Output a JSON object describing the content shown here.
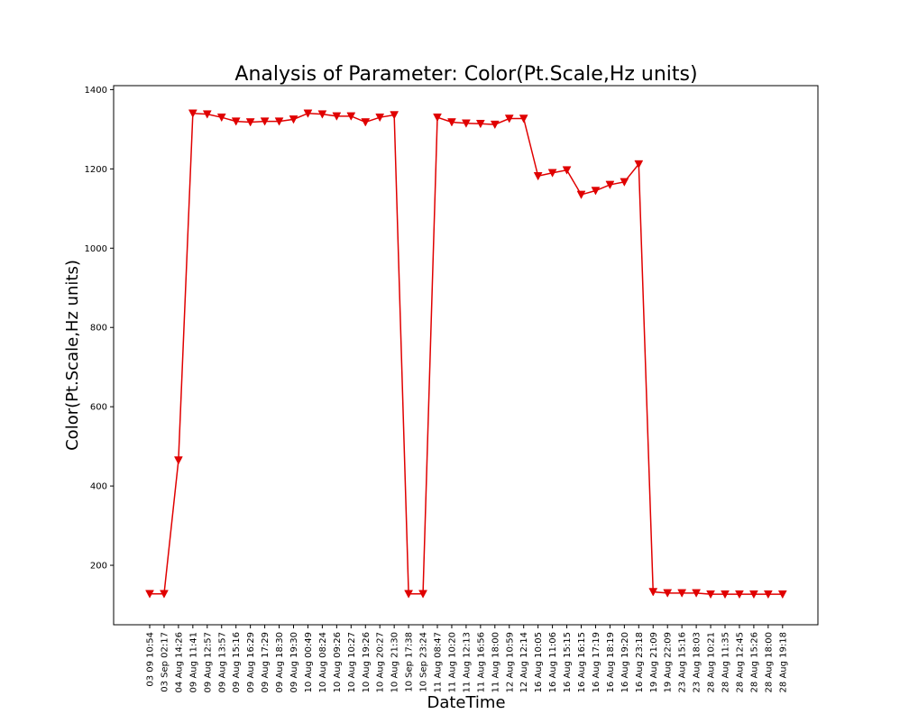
{
  "chart_data": {
    "type": "line",
    "title": "Analysis of Parameter: Color(Pt.Scale,Hz units)",
    "xlabel": "DateTime",
    "ylabel": "Color(Pt.Scale,Hz units)",
    "ylim": [
      50,
      1410
    ],
    "yticks": [
      200,
      400,
      600,
      800,
      1000,
      1200,
      1400
    ],
    "grid": false,
    "marker": "triangle-down",
    "color": "#e00000",
    "categories": [
      "03 09 10:54",
      "03 Sep 02:17",
      "04 Aug 14:26",
      "09 Aug 11:41",
      "09 Aug 12:57",
      "09 Aug 13:57",
      "09 Aug 15:16",
      "09 Aug 16:29",
      "09 Aug 17:29",
      "09 Aug 18:30",
      "09 Aug 19:30",
      "10 Aug 00:49",
      "10 Aug 08:24",
      "10 Aug 09:26",
      "10 Aug 10:27",
      "10 Aug 19:26",
      "10 Aug 20:27",
      "10 Aug 21:30",
      "10 Sep 17:38",
      "10 Sep 23:24",
      "11 Aug 08:47",
      "11 Aug 10:20",
      "11 Aug 12:13",
      "11 Aug 16:56",
      "11 Aug 18:00",
      "12 Aug 10:59",
      "12 Aug 12:14",
      "16 Aug 10:05",
      "16 Aug 11:06",
      "16 Aug 15:15",
      "16 Aug 16:15",
      "16 Aug 17:19",
      "16 Aug 18:19",
      "16 Aug 19:20",
      "16 Aug 23:18",
      "19 Aug 21:09",
      "19 Aug 22:09",
      "23 Aug 15:16",
      "23 Aug 18:03",
      "28 Aug 10:21",
      "28 Aug 11:35",
      "28 Aug 12:45",
      "28 Aug 15:26",
      "28 Aug 18:00",
      "28 Aug 19:18"
    ],
    "values": [
      128,
      128,
      465,
      1340,
      1338,
      1330,
      1320,
      1318,
      1320,
      1320,
      1325,
      1340,
      1338,
      1333,
      1333,
      1318,
      1330,
      1336,
      128,
      128,
      1330,
      1318,
      1315,
      1314,
      1312,
      1327,
      1327,
      1182,
      1190,
      1197,
      1135,
      1145,
      1160,
      1167,
      1212,
      133,
      130,
      130,
      130,
      127,
      127,
      127,
      127,
      127,
      127
    ]
  }
}
